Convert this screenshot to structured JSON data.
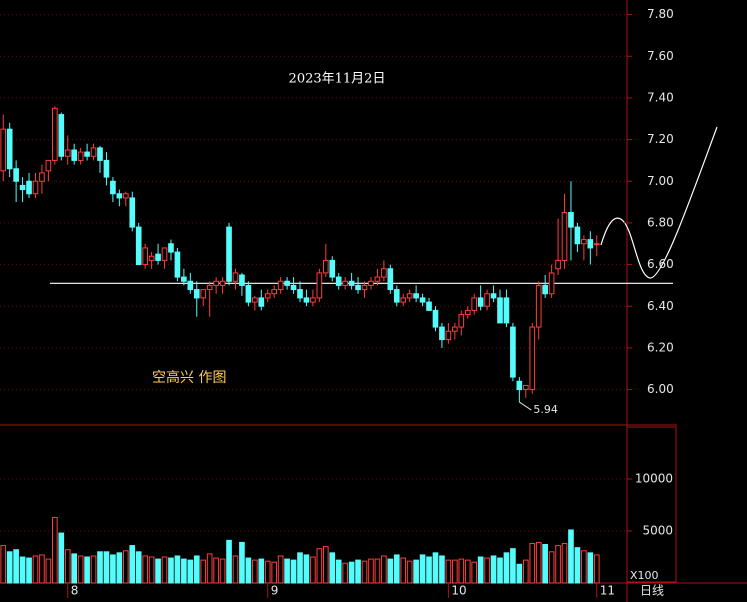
{
  "chart_data": {
    "type": "candlestick",
    "title": "2023年11月2日",
    "annotation": "空高兴 作图",
    "period_label": "日线",
    "up_color": "#ff3c3c",
    "down_color": "#54fcfc",
    "categories": [
      null,
      null,
      null,
      null,
      null,
      null,
      null,
      null,
      null,
      null,
      "8",
      null,
      null,
      null,
      null,
      null,
      null,
      null,
      null,
      null,
      null,
      null,
      null,
      null,
      null,
      null,
      null,
      null,
      null,
      null,
      null,
      null,
      null,
      null,
      null,
      null,
      null,
      null,
      null,
      null,
      null,
      "9",
      null,
      null,
      null,
      null,
      null,
      null,
      null,
      null,
      null,
      null,
      null,
      null,
      null,
      null,
      null,
      null,
      null,
      null,
      null,
      null,
      null,
      null,
      null,
      null,
      null,
      null,
      null,
      "10",
      null,
      null,
      null,
      null,
      null,
      null,
      null,
      null,
      null,
      null,
      null,
      null,
      null,
      null,
      null,
      null,
      null,
      null,
      null,
      null,
      null,
      null,
      "11"
    ],
    "open": [
      7.05,
      7.25,
      7.06,
      6.98,
      7.0,
      6.94,
      7.0,
      7.05,
      7.1,
      7.32,
      7.12,
      7.15,
      7.1,
      7.14,
      7.12,
      7.16,
      7.1,
      7.0,
      6.94,
      6.92,
      6.92,
      6.78,
      6.6,
      6.62,
      6.65,
      6.62,
      6.7,
      6.66,
      6.54,
      6.52,
      6.48,
      6.44,
      6.48,
      6.5,
      6.5,
      6.78,
      6.52,
      6.55,
      6.5,
      6.42,
      6.44,
      6.44,
      6.46,
      6.48,
      6.52,
      6.5,
      6.48,
      6.44,
      6.42,
      6.44,
      6.56,
      6.62,
      6.54,
      6.5,
      6.52,
      6.5,
      6.48,
      6.5,
      6.52,
      6.54,
      6.58,
      6.48,
      6.42,
      6.44,
      6.46,
      6.44,
      6.42,
      6.38,
      6.3,
      6.24,
      6.28,
      6.3,
      6.36,
      6.38,
      6.44,
      6.4,
      6.46,
      6.44,
      6.44,
      6.3,
      6.04,
      6.0,
      6.0,
      6.3,
      6.5,
      6.46,
      6.58,
      6.62,
      6.85,
      6.78,
      6.7,
      6.72,
      6.7
    ],
    "high": [
      7.32,
      7.28,
      7.1,
      7.02,
      7.04,
      7.04,
      7.08,
      7.1,
      7.36,
      7.33,
      7.22,
      7.18,
      7.16,
      7.18,
      7.18,
      7.17,
      7.14,
      7.02,
      6.96,
      6.95,
      6.95,
      6.8,
      6.7,
      6.66,
      6.7,
      6.66,
      6.72,
      6.68,
      6.58,
      6.56,
      6.52,
      6.48,
      6.52,
      6.54,
      6.54,
      6.8,
      6.58,
      6.56,
      6.52,
      6.45,
      6.48,
      6.48,
      6.5,
      6.54,
      6.54,
      6.54,
      6.52,
      6.48,
      6.48,
      6.58,
      6.7,
      6.64,
      6.56,
      6.54,
      6.56,
      6.54,
      6.52,
      6.54,
      6.58,
      6.62,
      6.6,
      6.5,
      6.46,
      6.48,
      6.5,
      6.46,
      6.44,
      6.4,
      6.32,
      6.32,
      6.32,
      6.38,
      6.4,
      6.46,
      6.5,
      6.48,
      6.5,
      6.48,
      6.48,
      6.32,
      6.06,
      6.02,
      6.32,
      6.52,
      6.55,
      6.6,
      6.82,
      6.94,
      7.0,
      6.8,
      6.74,
      6.76,
      6.74
    ],
    "low": [
      7.0,
      7.02,
      6.9,
      6.9,
      6.92,
      6.92,
      6.94,
      7.0,
      7.08,
      7.1,
      7.08,
      7.08,
      7.08,
      7.1,
      7.1,
      7.04,
      6.98,
      6.9,
      6.88,
      6.88,
      6.76,
      6.6,
      6.58,
      6.58,
      6.6,
      6.58,
      6.62,
      6.52,
      6.5,
      6.46,
      6.35,
      6.4,
      6.35,
      6.46,
      6.46,
      6.5,
      6.48,
      6.45,
      6.4,
      6.38,
      6.38,
      6.42,
      6.44,
      6.46,
      6.48,
      6.46,
      6.42,
      6.4,
      6.4,
      6.42,
      6.54,
      6.52,
      6.48,
      6.48,
      6.48,
      6.46,
      6.44,
      6.48,
      6.5,
      6.52,
      6.46,
      6.4,
      6.4,
      6.42,
      6.42,
      6.4,
      6.38,
      6.28,
      6.2,
      6.22,
      6.24,
      6.26,
      6.34,
      6.36,
      6.38,
      6.38,
      6.42,
      6.32,
      6.3,
      6.04,
      5.94,
      5.96,
      5.98,
      6.24,
      6.44,
      6.44,
      6.55,
      6.58,
      6.62,
      6.66,
      6.62,
      6.6,
      6.64
    ],
    "close": [
      7.25,
      7.06,
      7.0,
      6.96,
      6.94,
      7.0,
      7.04,
      7.1,
      7.35,
      7.12,
      7.15,
      7.1,
      7.14,
      7.12,
      7.16,
      7.1,
      7.02,
      6.94,
      6.92,
      6.94,
      6.78,
      6.6,
      6.68,
      6.64,
      6.62,
      6.68,
      6.66,
      6.54,
      6.52,
      6.48,
      6.44,
      6.48,
      6.5,
      6.52,
      6.52,
      6.52,
      6.56,
      6.5,
      6.42,
      6.44,
      6.4,
      6.46,
      6.48,
      6.52,
      6.5,
      6.48,
      6.44,
      6.42,
      6.44,
      6.56,
      6.62,
      6.54,
      6.5,
      6.52,
      6.5,
      6.48,
      6.5,
      6.52,
      6.54,
      6.58,
      6.48,
      6.42,
      6.44,
      6.46,
      6.44,
      6.42,
      6.38,
      6.3,
      6.24,
      6.28,
      6.3,
      6.36,
      6.38,
      6.44,
      6.4,
      6.46,
      6.44,
      6.32,
      6.32,
      6.06,
      6.0,
      6.02,
      6.3,
      6.5,
      6.46,
      6.56,
      6.62,
      6.85,
      6.78,
      6.7,
      6.72,
      6.68,
      6.7
    ],
    "ylim": [
      5.83,
      7.87
    ],
    "yticks": [
      {
        "value": 7.8,
        "label": "7.80"
      },
      {
        "value": 7.6,
        "label": "7.60"
      },
      {
        "value": 7.4,
        "label": "7.40"
      },
      {
        "value": 7.2,
        "label": "7.20"
      },
      {
        "value": 7.0,
        "label": "7.00"
      },
      {
        "value": 6.8,
        "label": "6.80"
      },
      {
        "value": 6.6,
        "label": "6.60"
      },
      {
        "value": 6.4,
        "label": "6.40"
      },
      {
        "value": 6.2,
        "label": "6.20"
      },
      {
        "value": 6.0,
        "label": "6.00"
      }
    ],
    "hline": 6.51,
    "low_marker": {
      "value": 5.94,
      "label": "5.94"
    },
    "volume": {
      "values": [
        3600,
        3000,
        3200,
        2500,
        2400,
        2600,
        2700,
        2300,
        6300,
        4800,
        3200,
        2800,
        2600,
        2500,
        2600,
        3000,
        3000,
        2700,
        2900,
        3100,
        3600,
        3000,
        2600,
        2500,
        2300,
        2500,
        2400,
        2600,
        2300,
        2200,
        2600,
        2200,
        2800,
        2400,
        2300,
        4100,
        2600,
        3900,
        2400,
        2200,
        2300,
        2100,
        2000,
        2600,
        2300,
        2200,
        2900,
        2700,
        2500,
        3300,
        3500,
        2900,
        2200,
        1900,
        2000,
        2200,
        2100,
        2300,
        2300,
        2600,
        2300,
        2700,
        2400,
        2100,
        2200,
        2700,
        2500,
        2900,
        2600,
        2200,
        2200,
        2300,
        2200,
        2000,
        2500,
        2400,
        2600,
        2400,
        2900,
        3300,
        1800,
        2200,
        3800,
        3900,
        3700,
        3000,
        3600,
        3800,
        5100,
        3400,
        3100,
        2900,
        2700
      ],
      "ylim": [
        0,
        15000
      ],
      "yticks": [
        5000,
        10000
      ],
      "unit_label": "X100"
    }
  }
}
